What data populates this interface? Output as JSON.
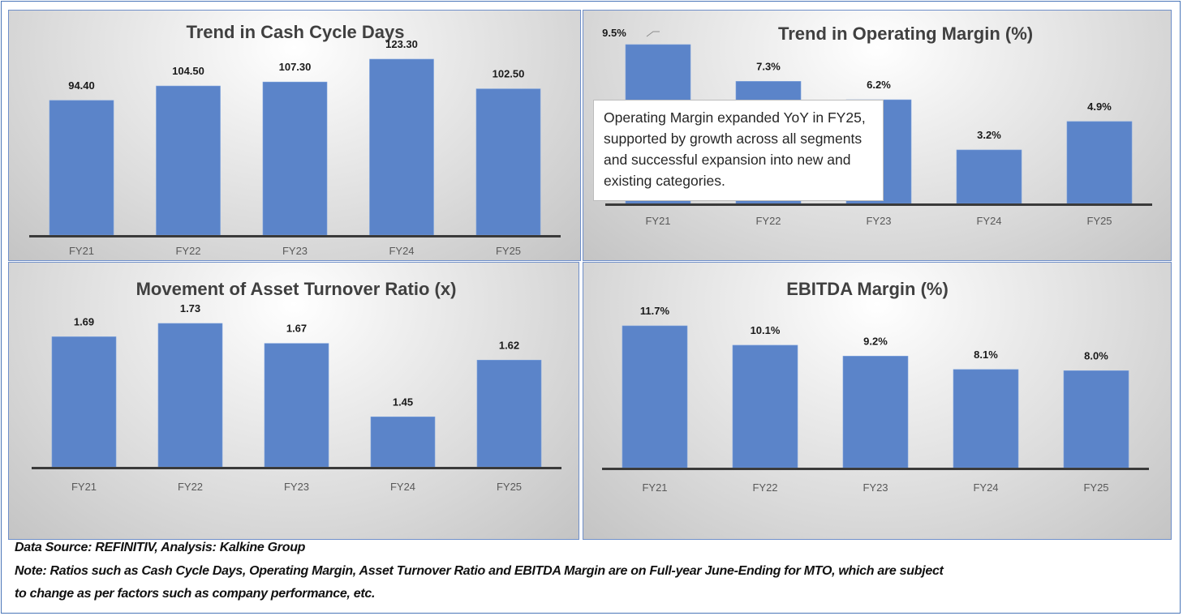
{
  "chart_data": [
    {
      "type": "bar",
      "title": "Trend in Cash Cycle Days",
      "categories": [
        "FY21",
        "FY22",
        "FY23",
        "FY24",
        "FY25"
      ],
      "values": [
        94.4,
        104.5,
        107.3,
        123.3,
        102.5
      ],
      "labels": [
        "94.40",
        "104.50",
        "107.30",
        "123.30",
        "102.50"
      ],
      "xlabel": "",
      "ylabel": "",
      "ylim": [
        0,
        135
      ],
      "grid": false,
      "legend": "none",
      "bar_color": "#5b84c9"
    },
    {
      "type": "bar",
      "title": "Trend in Operating Margin (%)",
      "categories": [
        "FY21",
        "FY22",
        "FY23",
        "FY24",
        "FY25"
      ],
      "values": [
        9.5,
        7.3,
        6.2,
        3.2,
        4.9
      ],
      "labels": [
        "9.5%",
        "7.3%",
        "6.2%",
        "3.2%",
        "4.9%"
      ],
      "xlabel": "",
      "ylabel": "",
      "ylim": [
        0,
        10
      ],
      "grid": false,
      "legend": "none",
      "bar_color": "#5b84c9",
      "annotation": "Operating Margin expanded YoY in FY25, supported by growth across all segments and successful expansion into new and existing categories."
    },
    {
      "type": "bar",
      "title": "Movement of Asset Turnover Ratio (x)",
      "categories": [
        "FY21",
        "FY22",
        "FY23",
        "FY24",
        "FY25"
      ],
      "values": [
        1.69,
        1.73,
        1.67,
        1.45,
        1.62
      ],
      "labels": [
        "1.69",
        "1.73",
        "1.67",
        "1.45",
        "1.62"
      ],
      "xlabel": "",
      "ylabel": "",
      "ylim": [
        1.3,
        1.8
      ],
      "grid": false,
      "legend": "none",
      "bar_color": "#5b84c9"
    },
    {
      "type": "bar",
      "title": "EBITDA Margin (%)",
      "categories": [
        "FY21",
        "FY22",
        "FY23",
        "FY24",
        "FY25"
      ],
      "values": [
        11.7,
        10.1,
        9.2,
        8.1,
        8.0
      ],
      "labels": [
        "11.7%",
        "10.1%",
        "9.2%",
        "8.1%",
        "8.0%"
      ],
      "xlabel": "",
      "ylabel": "",
      "ylim": [
        0,
        14
      ],
      "grid": false,
      "legend": "none",
      "bar_color": "#5b84c9"
    }
  ],
  "footer": {
    "source": "Data Source: REFINITIV, Analysis: Kalkine Group",
    "note_line1": "Note: Ratios such as Cash Cycle Days, Operating Margin, Asset Turnover Ratio and EBITDA Margin are on Full-year June-Ending for MTO, which are subject",
    "note_line2": "to change as per factors such as company performance, etc."
  }
}
